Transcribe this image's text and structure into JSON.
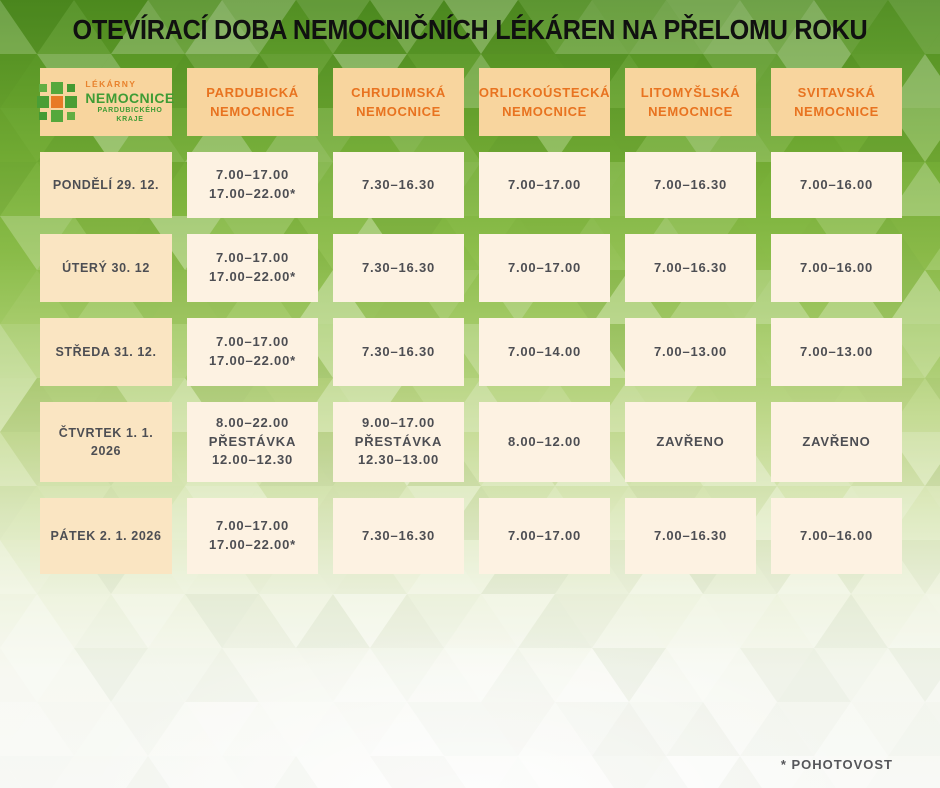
{
  "title": "OTEVÍRACÍ DOBA NEMOCNIČNÍCH LÉKÁREN NA PŘELOMU ROKU",
  "logo": {
    "line1": "LÉKÁRNY",
    "line2": "NEMOCNICE",
    "line3": "PARDUBICKÉHO KRAJE"
  },
  "columns": [
    {
      "line1": "PARDUBICKÁ",
      "line2": "NEMOCNICE"
    },
    {
      "line1": "CHRUDIMSKÁ",
      "line2": "NEMOCNICE"
    },
    {
      "line1": "ORLICKOÚSTECKÁ",
      "line2": "NEMOCNICE"
    },
    {
      "line1": "LITOMYŠLSKÁ",
      "line2": "NEMOCNICE"
    },
    {
      "line1": "SVITAVSKÁ",
      "line2": "NEMOCNICE"
    }
  ],
  "rows": [
    {
      "label": "PONDĚLÍ 29. 12.",
      "cells": [
        [
          "7.00–17.00",
          "17.00–22.00*"
        ],
        [
          "7.30–16.30"
        ],
        [
          "7.00–17.00"
        ],
        [
          "7.00–16.30"
        ],
        [
          "7.00–16.00"
        ]
      ]
    },
    {
      "label": "ÚTERÝ 30. 12",
      "cells": [
        [
          "7.00–17.00",
          "17.00–22.00*"
        ],
        [
          "7.30–16.30"
        ],
        [
          "7.00–17.00"
        ],
        [
          "7.00–16.30"
        ],
        [
          "7.00–16.00"
        ]
      ]
    },
    {
      "label": "STŘEDA 31. 12.",
      "cells": [
        [
          "7.00–17.00",
          "17.00–22.00*"
        ],
        [
          "7.30–16.30"
        ],
        [
          "7.00–14.00"
        ],
        [
          "7.00–13.00"
        ],
        [
          "7.00–13.00"
        ]
      ]
    },
    {
      "label": "ČTVRTEK 1. 1. 2026",
      "cells": [
        [
          "8.00–22.00",
          "PŘESTÁVKA",
          "12.00–12.30"
        ],
        [
          "9.00–17.00",
          "PŘESTÁVKA",
          "12.30–13.00"
        ],
        [
          "8.00–12.00"
        ],
        [
          "ZAVŘENO"
        ],
        [
          "ZAVŘENO"
        ]
      ]
    },
    {
      "label": "PÁTEK 2. 1. 2026",
      "cells": [
        [
          "7.00–17.00",
          "17.00–22.00*"
        ],
        [
          "7.30–16.30"
        ],
        [
          "7.00–17.00"
        ],
        [
          "7.00–16.30"
        ],
        [
          "7.00–16.00"
        ]
      ]
    }
  ],
  "footnote": "* POHOTOVOST",
  "colors": {
    "header_cell_bg": "#f8d59e",
    "day_cell_bg": "#fae5c2",
    "hours_cell_bg": "#fdf2e2",
    "accent_orange": "#e87320",
    "logo_green": "#3f9c35",
    "cell_text": "#4d4e53",
    "title_text": "#101010",
    "background_green_top": "#4f8d20",
    "background_bottom": "#f8f9f6"
  }
}
